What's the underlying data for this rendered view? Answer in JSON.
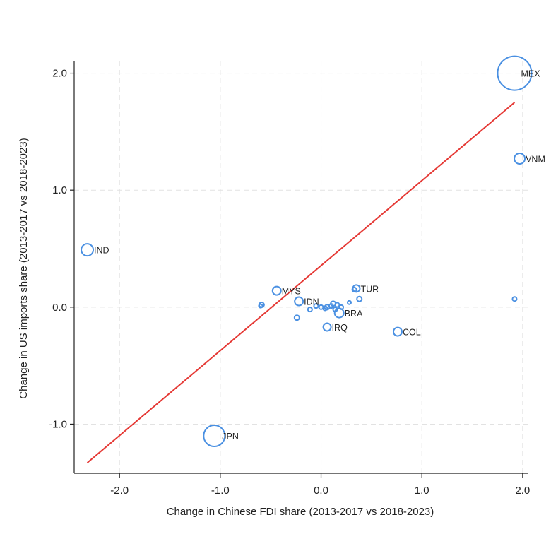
{
  "chart_data": {
    "type": "scatter",
    "title": "",
    "xlabel": "Change in Chinese FDI share (2013-2017 vs 2018-2023)",
    "ylabel": "Change in US imports share (2013-2017 vs 2018-2023)",
    "xlim": [
      -2.45,
      2.05
    ],
    "ylim": [
      -1.42,
      2.1
    ],
    "xticks": [
      -2.0,
      -1.0,
      0.0,
      1.0,
      2.0
    ],
    "xtick_labels": [
      "-2.0",
      "-1.0",
      "0.0",
      "1.0",
      "2.0"
    ],
    "yticks": [
      -1.0,
      0.0,
      1.0,
      2.0
    ],
    "ytick_labels": [
      "-1.0",
      "0.0",
      "1.0",
      "2.0"
    ],
    "grid": true,
    "colors": {
      "points": "#4a90e2",
      "fit_line": "#e53935",
      "axis": "#222222"
    },
    "points": [
      {
        "label": "MEX",
        "x": 1.92,
        "y": 2.0,
        "size": 48
      },
      {
        "label": "VNM",
        "x": 1.97,
        "y": 1.27,
        "size": 15
      },
      {
        "label": "IND",
        "x": -2.32,
        "y": 0.49,
        "size": 17
      },
      {
        "label": "JPN",
        "x": -1.06,
        "y": -1.1,
        "size": 30
      },
      {
        "label": "MYS",
        "x": -0.44,
        "y": 0.14,
        "size": 12
      },
      {
        "label": "IDN",
        "x": -0.22,
        "y": 0.05,
        "size": 12
      },
      {
        "label": "TUR",
        "x": 0.35,
        "y": 0.16,
        "size": 10
      },
      {
        "label": "BRA",
        "x": 0.18,
        "y": -0.05,
        "size": 13
      },
      {
        "label": "IRQ",
        "x": 0.06,
        "y": -0.17,
        "size": 11
      },
      {
        "label": "COL",
        "x": 0.76,
        "y": -0.21,
        "size": 12
      },
      {
        "label": "",
        "x": 1.92,
        "y": 0.07,
        "size": 6
      },
      {
        "label": "",
        "x": -0.59,
        "y": 0.02,
        "size": 7
      },
      {
        "label": "",
        "x": -0.6,
        "y": 0.01,
        "size": 5
      },
      {
        "label": "",
        "x": -0.24,
        "y": -0.09,
        "size": 7
      },
      {
        "label": "",
        "x": -0.11,
        "y": -0.02,
        "size": 6
      },
      {
        "label": "",
        "x": -0.05,
        "y": 0.01,
        "size": 6
      },
      {
        "label": "",
        "x": 0.0,
        "y": 0.0,
        "size": 6
      },
      {
        "label": "",
        "x": 0.04,
        "y": -0.01,
        "size": 6
      },
      {
        "label": "",
        "x": 0.06,
        "y": 0.0,
        "size": 7
      },
      {
        "label": "",
        "x": 0.1,
        "y": 0.01,
        "size": 6
      },
      {
        "label": "",
        "x": 0.12,
        "y": 0.03,
        "size": 7
      },
      {
        "label": "",
        "x": 0.14,
        "y": -0.02,
        "size": 6
      },
      {
        "label": "",
        "x": 0.16,
        "y": 0.02,
        "size": 6
      },
      {
        "label": "",
        "x": 0.2,
        "y": 0.0,
        "size": 6
      },
      {
        "label": "",
        "x": 0.28,
        "y": 0.04,
        "size": 5
      },
      {
        "label": "",
        "x": 0.33,
        "y": 0.15,
        "size": 6
      },
      {
        "label": "",
        "x": 0.38,
        "y": 0.07,
        "size": 7
      }
    ],
    "fit_line": {
      "x": [
        -2.32,
        1.92
      ],
      "y": [
        -1.33,
        1.75
      ]
    }
  }
}
